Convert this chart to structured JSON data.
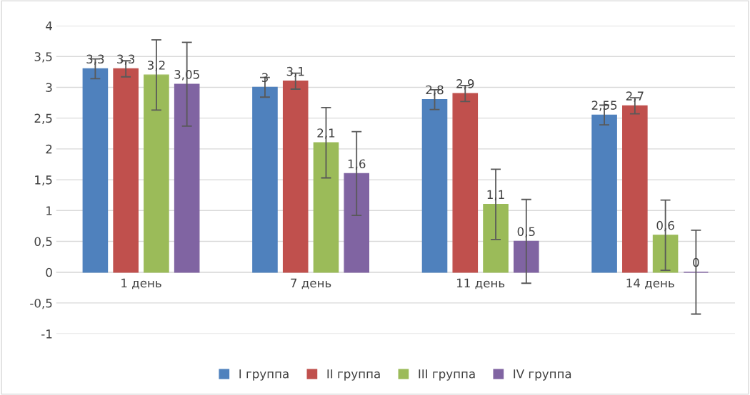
{
  "chart_data": {
    "type": "bar",
    "categories": [
      "1 день",
      "7 день",
      "11 день",
      "14 день"
    ],
    "series": [
      {
        "name": "I группа",
        "color": "#4f81bd",
        "values": [
          3.3,
          3,
          2.8,
          2.55
        ],
        "errors": [
          0.16,
          0.16,
          0.16,
          0.16
        ],
        "value_labels": [
          "3,3",
          "3",
          "2,8",
          "2,55"
        ]
      },
      {
        "name": "II группа",
        "color": "#c0504d",
        "values": [
          3.3,
          3.1,
          2.9,
          2.7
        ],
        "errors": [
          0.13,
          0.13,
          0.13,
          0.13
        ],
        "value_labels": [
          "3,3",
          "3,1",
          "2,9",
          "2,7"
        ]
      },
      {
        "name": "III группа",
        "color": "#9bbb59",
        "values": [
          3.2,
          2.1,
          1.1,
          0.6
        ],
        "errors": [
          0.57,
          0.57,
          0.57,
          0.57
        ],
        "value_labels": [
          "3,2",
          "2,1",
          "1,1",
          "0,6"
        ]
      },
      {
        "name": "IV группа",
        "color": "#8064a2",
        "values": [
          3.05,
          1.6,
          0.5,
          0
        ],
        "errors": [
          0.68,
          0.68,
          0.68,
          0.68
        ],
        "value_labels": [
          "3,05",
          "1,6",
          "0,5",
          "0"
        ]
      }
    ],
    "ylim": [
      -1,
      4
    ],
    "yticks": [
      {
        "value": -1,
        "label": "-1"
      },
      {
        "value": -0.5,
        "label": "-0,5"
      },
      {
        "value": 0,
        "label": "0"
      },
      {
        "value": 0.5,
        "label": "0,5"
      },
      {
        "value": 1,
        "label": "1"
      },
      {
        "value": 1.5,
        "label": "1,5"
      },
      {
        "value": 2,
        "label": "2"
      },
      {
        "value": 2.5,
        "label": "2,5"
      },
      {
        "value": 3,
        "label": "3"
      },
      {
        "value": 3.5,
        "label": "3,5"
      },
      {
        "value": 4,
        "label": "4"
      }
    ],
    "grid": "y",
    "legend": "bottom"
  }
}
